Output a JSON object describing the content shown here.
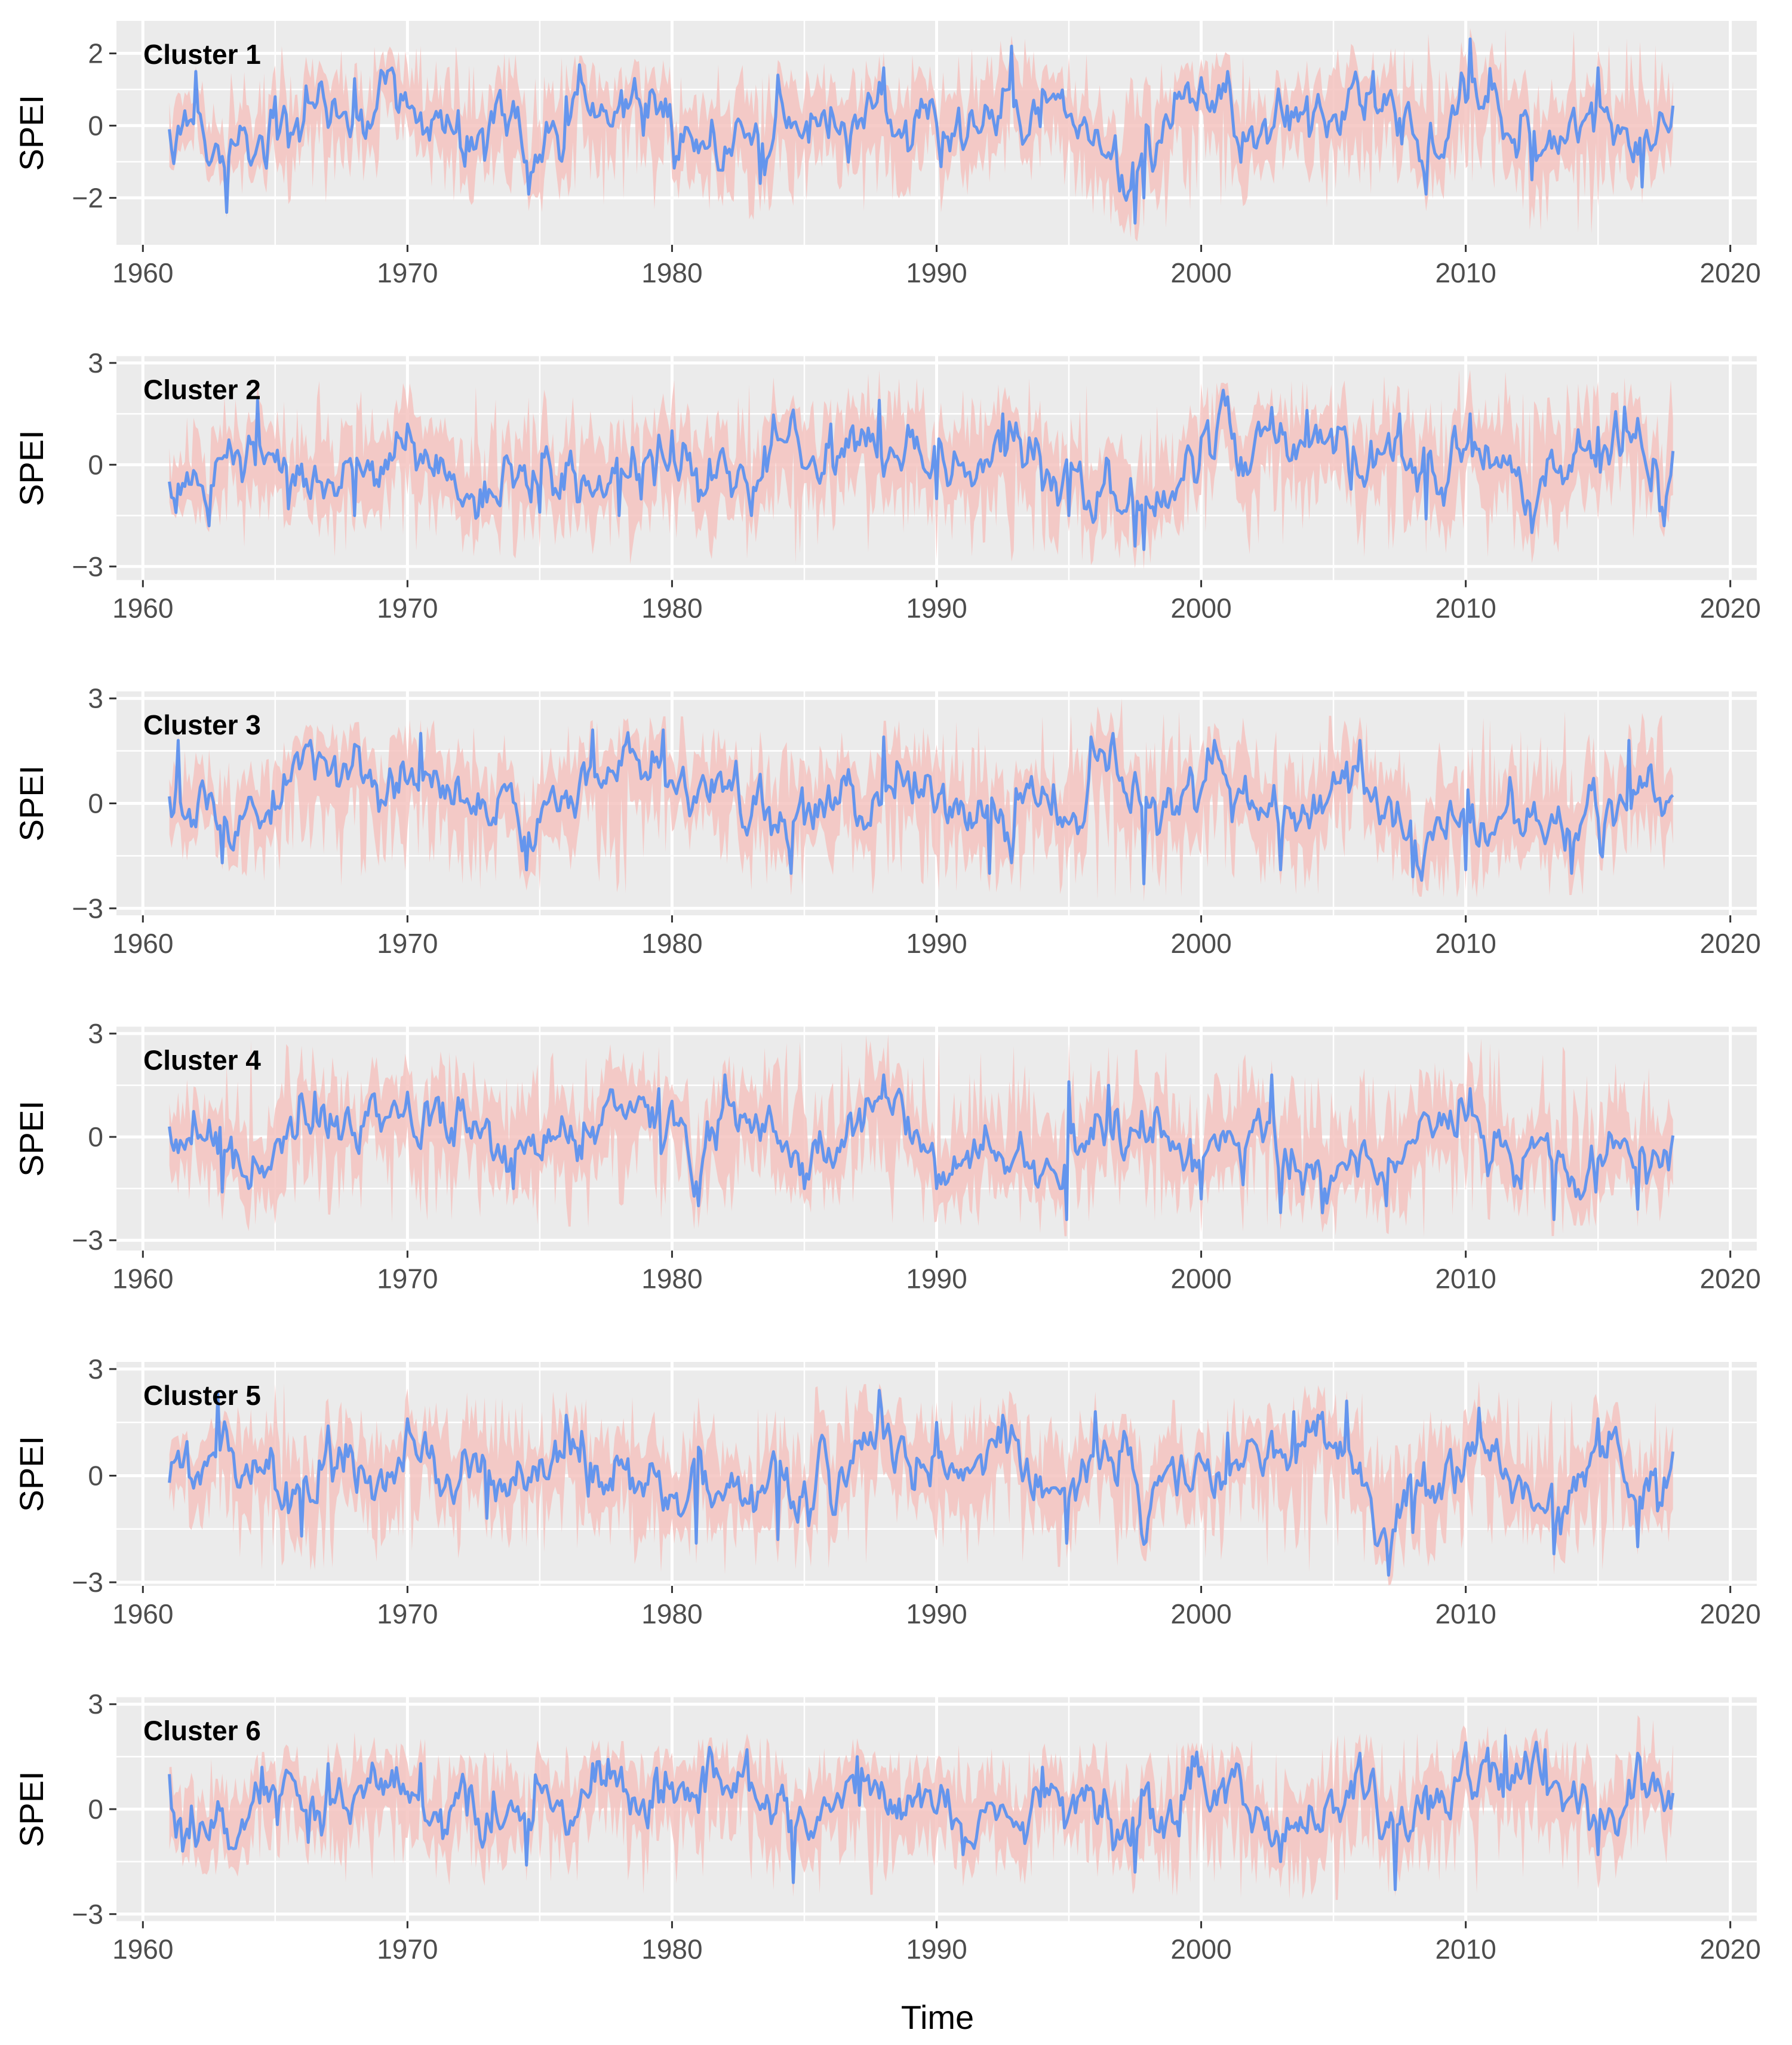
{
  "figure": {
    "xlabel": "Time",
    "ylabel": "SPEI"
  },
  "colors": {
    "panel_background": "#ebebeb",
    "grid_major": "#ffffff",
    "mean_line": "#6495ed",
    "range_band": "#f4c3bf",
    "tick_text": "#4d4d4d"
  },
  "chart_data": [
    {
      "type": "line",
      "title": "Cluster 1",
      "label": "Cluster 1",
      "xlabel": "Time",
      "ylabel": "SPEI",
      "xlim": [
        1959,
        2021
      ],
      "ylim": [
        -3.3,
        2.9
      ],
      "xticks": [
        1960,
        1970,
        1980,
        1990,
        2000,
        2010,
        2020
      ],
      "yticks": [
        -2,
        0,
        2
      ],
      "ytick_labels": [
        "−2",
        "0",
        "2"
      ],
      "grid": true,
      "series_time_range": [
        1961.0,
        2017.9
      ],
      "series": [
        {
          "name": "",
          "role": "mean",
          "color": "#6495ed",
          "x": [
            1961.0,
            1962.0,
            1963.2,
            1965.0,
            1966.2,
            1968.0,
            1969.5,
            1972.0,
            1974.6,
            1976.0,
            1979.0,
            1983.3,
            1984.0,
            1986.0,
            1988.0,
            1990.5,
            1992.8,
            1994.0,
            1997.5,
            1997.8,
            1999.0,
            2001.0,
            2004.0,
            2006.5,
            2008.5,
            2010.2,
            2012.5,
            2015.0,
            2016.7,
            2017.9
          ],
          "values": [
            -0.1,
            1.5,
            -2.4,
            0.8,
            1.1,
            1.3,
            1.4,
            -0.6,
            -1.9,
            0.8,
            0.6,
            -1.6,
            1.4,
            0.5,
            1.6,
            -0.7,
            2.2,
            1.0,
            -2.7,
            -2.0,
            0.9,
            1.5,
            0.8,
            1.5,
            -1.9,
            2.4,
            -1.5,
            1.6,
            -1.7,
            -0.5
          ]
        },
        {
          "name": "",
          "role": "range",
          "color": "#f4c3bf",
          "x": [
            1961.0,
            1965.0,
            1970.0,
            1975.0,
            1980.0,
            1985.0,
            1990.0,
            1992.8,
            1997.8,
            2000.0,
            2005.0,
            2010.2,
            2015.0,
            2017.9
          ],
          "upper": [
            0.8,
            2.2,
            2.3,
            2.0,
            1.8,
            2.2,
            1.9,
            2.5,
            1.6,
            2.0,
            2.2,
            2.7,
            2.6,
            2.1
          ],
          "lower": [
            -1.2,
            -2.2,
            -2.0,
            -2.4,
            -2.3,
            -2.8,
            -2.5,
            -1.2,
            -3.3,
            -2.2,
            -2.3,
            -2.8,
            -3.0,
            -1.5
          ]
        }
      ]
    },
    {
      "type": "line",
      "title": "Cluster 2",
      "label": "Cluster 2",
      "xlabel": "Time",
      "ylabel": "SPEI",
      "xlim": [
        1959,
        2021
      ],
      "ylim": [
        -3.4,
        3.2
      ],
      "xticks": [
        1960,
        1970,
        1980,
        1990,
        2000,
        2010,
        2020
      ],
      "yticks": [
        -3,
        0,
        3
      ],
      "ytick_labels": [
        "−3",
        "0",
        "3"
      ],
      "grid": true,
      "series_time_range": [
        1961.0,
        2017.9
      ],
      "series": [
        {
          "name": "",
          "role": "mean",
          "color": "#6495ed",
          "x": [
            1961.0,
            1962.5,
            1964.3,
            1965.5,
            1968.0,
            1970.0,
            1973.0,
            1975.0,
            1978.0,
            1980.0,
            1983.0,
            1986.0,
            1987.8,
            1990.0,
            1992.5,
            1995.0,
            1997.5,
            1997.8,
            2000.0,
            2001.0,
            2004.0,
            2007.5,
            2008.5,
            2010.2,
            2012.5,
            2015.0,
            2016.0,
            2017.5,
            2017.9
          ],
          "values": [
            -0.5,
            -1.8,
            1.9,
            -1.3,
            -1.5,
            1.2,
            -1.1,
            -1.4,
            -1.5,
            1.0,
            -1.5,
            1.2,
            1.9,
            -1.0,
            1.5,
            -1.5,
            -2.4,
            -2.5,
            0.8,
            2.0,
            1.6,
            1.5,
            -1.6,
            1.5,
            -2.0,
            1.1,
            1.7,
            -1.8,
            0.5
          ]
        },
        {
          "name": "",
          "role": "range",
          "color": "#f4c3bf",
          "x": [
            1961.0,
            1965.0,
            1970.0,
            1975.0,
            1980.0,
            1985.0,
            1988.0,
            1990.0,
            1995.0,
            1997.8,
            2000.0,
            2005.0,
            2010.0,
            2015.0,
            2017.9
          ],
          "upper": [
            1.5,
            2.5,
            2.4,
            2.2,
            2.5,
            2.6,
            2.8,
            2.4,
            2.6,
            1.5,
            2.4,
            2.5,
            2.8,
            2.6,
            2.5
          ],
          "lower": [
            -1.5,
            -2.8,
            -2.6,
            -2.8,
            -3.0,
            -2.9,
            -2.5,
            -2.8,
            -2.9,
            -3.1,
            -2.6,
            -2.7,
            -2.8,
            -3.0,
            -2.0
          ]
        }
      ]
    },
    {
      "type": "line",
      "title": "Cluster 3",
      "label": "Cluster 3",
      "xlabel": "Time",
      "ylabel": "SPEI",
      "xlim": [
        1959,
        2021
      ],
      "ylim": [
        -3.2,
        3.2
      ],
      "xticks": [
        1960,
        1970,
        1980,
        1990,
        2000,
        2010,
        2020
      ],
      "yticks": [
        -3,
        0,
        3
      ],
      "ytick_labels": [
        "−3",
        "0",
        "3"
      ],
      "grid": true,
      "series_time_range": [
        1961.0,
        2017.9
      ],
      "series": [
        {
          "name": "",
          "role": "mean",
          "color": "#6495ed",
          "x": [
            1961.0,
            1961.3,
            1963.0,
            1966.3,
            1970.5,
            1974.5,
            1977.0,
            1979.7,
            1984.5,
            1988.0,
            1992.0,
            1996.7,
            1997.8,
            2000.5,
            2003.0,
            2006.0,
            2008.0,
            2010.0,
            2014.0,
            2016.2,
            2017.9
          ],
          "values": [
            0.2,
            1.8,
            -1.7,
            1.8,
            2.0,
            -1.9,
            2.1,
            2.1,
            -2.0,
            1.9,
            -2.0,
            2.0,
            -2.3,
            1.8,
            -1.9,
            1.8,
            -2.1,
            -1.9,
            -2.0,
            1.8,
            0.2
          ]
        },
        {
          "name": "",
          "role": "range",
          "color": "#f4c3bf",
          "x": [
            1961.0,
            1965.0,
            1970.0,
            1975.0,
            1980.0,
            1985.0,
            1990.0,
            1995.0,
            1997.0,
            2000.0,
            2005.0,
            2010.0,
            2015.0,
            2017.9
          ],
          "upper": [
            1.5,
            2.2,
            2.4,
            2.3,
            2.5,
            2.3,
            2.4,
            2.5,
            3.0,
            2.6,
            2.5,
            2.4,
            2.7,
            2.5
          ],
          "lower": [
            -1.5,
            -2.3,
            -2.4,
            -2.5,
            -2.6,
            -2.7,
            -2.5,
            -2.6,
            -2.9,
            -2.6,
            -2.6,
            -2.7,
            -2.6,
            -1.8
          ]
        }
      ]
    },
    {
      "type": "line",
      "title": "Cluster 4",
      "label": "Cluster 4",
      "xlabel": "Time",
      "ylabel": "SPEI",
      "xlim": [
        1959,
        2021
      ],
      "ylim": [
        -3.3,
        3.2
      ],
      "xticks": [
        1960,
        1970,
        1980,
        1990,
        2000,
        2010,
        2020
      ],
      "yticks": [
        -3,
        0,
        3
      ],
      "ytick_labels": [
        "−3",
        "0",
        "3"
      ],
      "grid": true,
      "series_time_range": [
        1961.0,
        2017.9
      ],
      "series": [
        {
          "name": "",
          "role": "mean",
          "color": "#6495ed",
          "x": [
            1961.0,
            1963.0,
            1966.5,
            1970.0,
            1974.0,
            1979.5,
            1981.0,
            1982.0,
            1985.0,
            1988.0,
            1990.0,
            1994.9,
            1995.0,
            1996.5,
            2000.0,
            2002.7,
            2003.0,
            2007.0,
            2010.2,
            2013.3,
            2016.5,
            2017.9
          ],
          "values": [
            0.3,
            -1.6,
            1.3,
            1.3,
            -1.5,
            1.4,
            -2.0,
            1.8,
            -1.5,
            1.8,
            -1.5,
            -2.4,
            1.6,
            1.5,
            -1.8,
            1.8,
            -2.2,
            -2.0,
            1.4,
            -2.4,
            -2.1,
            -0.3
          ]
        },
        {
          "name": "",
          "role": "range",
          "color": "#f4c3bf",
          "x": [
            1961.0,
            1964.0,
            1968.0,
            1972.0,
            1976.0,
            1980.0,
            1984.0,
            1988.0,
            1992.0,
            1995.0,
            2000.0,
            2003.0,
            2007.0,
            2010.0,
            2014.0,
            2017.9
          ],
          "upper": [
            1.5,
            2.8,
            2.5,
            2.6,
            2.8,
            2.6,
            2.7,
            3.0,
            2.6,
            2.7,
            2.4,
            2.8,
            2.5,
            2.9,
            2.6,
            1.8
          ],
          "lower": [
            -1.5,
            -2.9,
            -2.5,
            -2.4,
            -2.6,
            -2.7,
            -2.6,
            -2.5,
            -2.6,
            -2.9,
            -2.8,
            -2.7,
            -3.0,
            -2.8,
            -2.9,
            -2.6
          ]
        }
      ]
    },
    {
      "type": "line",
      "title": "Cluster 5",
      "label": "Cluster 5",
      "xlabel": "Time",
      "ylabel": "SPEI",
      "xlim": [
        1959,
        2021
      ],
      "ylim": [
        -3.1,
        3.2
      ],
      "xticks": [
        1960,
        1970,
        1980,
        1990,
        2000,
        2010,
        2020
      ],
      "yticks": [
        -3,
        0,
        3
      ],
      "ytick_labels": [
        "−3",
        "0",
        "3"
      ],
      "grid": true,
      "series_time_range": [
        1961.0,
        2017.9
      ],
      "series": [
        {
          "name": "",
          "role": "mean",
          "color": "#6495ed",
          "x": [
            1961.0,
            1962.8,
            1966.0,
            1967.0,
            1970.0,
            1973.0,
            1976.0,
            1980.9,
            1984.0,
            1987.8,
            1990.0,
            1992.5,
            1994.9,
            1996.0,
            1998.0,
            2001.0,
            2003.5,
            2005.5,
            2007.1,
            2008.0,
            2010.5,
            2013.3,
            2015.0,
            2016.5,
            2017.9
          ],
          "values": [
            -0.2,
            2.3,
            -1.7,
            1.4,
            1.6,
            -1.2,
            1.7,
            -1.9,
            -1.8,
            2.4,
            1.5,
            1.7,
            -1.9,
            1.8,
            -1.2,
            1.2,
            1.8,
            2.1,
            -2.8,
            -1.6,
            1.9,
            -2.2,
            1.6,
            -2.0,
            0.8
          ]
        },
        {
          "name": "",
          "role": "range",
          "color": "#f4c3bf",
          "x": [
            1961.0,
            1965.0,
            1969.0,
            1973.0,
            1977.0,
            1981.0,
            1985.0,
            1988.0,
            1992.0,
            1996.0,
            2000.0,
            2004.0,
            2007.0,
            2010.0,
            2014.0,
            2017.9
          ],
          "upper": [
            1.0,
            2.6,
            2.5,
            2.3,
            2.4,
            2.2,
            2.5,
            2.6,
            2.4,
            2.5,
            2.0,
            2.6,
            2.2,
            2.7,
            2.4,
            2.0
          ],
          "lower": [
            -1.5,
            -2.8,
            -2.4,
            -2.3,
            -2.6,
            -2.8,
            -2.7,
            -2.4,
            -2.5,
            -2.6,
            -2.3,
            -2.7,
            -3.1,
            -2.7,
            -3.0,
            -1.8
          ]
        }
      ]
    },
    {
      "type": "line",
      "title": "Cluster 6",
      "label": "Cluster 6",
      "xlabel": "Time",
      "ylabel": "SPEI",
      "xlim": [
        1959,
        2021
      ],
      "ylim": [
        -3.2,
        3.2
      ],
      "xticks": [
        1960,
        1970,
        1980,
        1990,
        2000,
        2010,
        2020
      ],
      "yticks": [
        -3,
        0,
        3
      ],
      "ytick_labels": [
        "−3",
        "0",
        "3"
      ],
      "grid": true,
      "series_time_range": [
        1961.0,
        2017.9
      ],
      "series": [
        {
          "name": "",
          "role": "mean",
          "color": "#6495ed",
          "x": [
            1961.0,
            1961.5,
            1964.5,
            1967.0,
            1970.5,
            1974.5,
            1977.0,
            1982.8,
            1984.6,
            1987.0,
            1991.0,
            1994.0,
            1997.5,
            2000.0,
            2003.0,
            2006.0,
            2007.3,
            2010.0,
            2011.5,
            2013.0,
            2015.0,
            2016.5,
            2017.9
          ],
          "values": [
            1.0,
            -1.2,
            1.2,
            1.3,
            1.3,
            -1.6,
            1.3,
            1.7,
            -2.1,
            1.5,
            -1.3,
            1.2,
            -1.8,
            1.2,
            -1.5,
            1.6,
            -2.3,
            1.9,
            2.1,
            1.7,
            -1.3,
            1.6,
            1.2
          ]
        },
        {
          "name": "",
          "role": "range",
          "color": "#f4c3bf",
          "x": [
            1961.0,
            1965.0,
            1968.0,
            1972.0,
            1976.0,
            1980.0,
            1983.0,
            1986.0,
            1990.0,
            1995.0,
            2000.0,
            2005.0,
            2010.0,
            2014.0,
            2016.8,
            2017.9
          ],
          "upper": [
            1.2,
            1.8,
            2.2,
            1.9,
            2.0,
            1.9,
            2.2,
            2.1,
            1.8,
            2.0,
            1.9,
            2.1,
            2.4,
            2.3,
            2.8,
            1.8
          ],
          "lower": [
            -1.8,
            -2.0,
            -2.1,
            -2.3,
            -2.2,
            -2.5,
            -2.4,
            -2.6,
            -2.2,
            -2.4,
            -2.5,
            -2.6,
            -2.4,
            -2.3,
            -2.2,
            -1.5
          ]
        }
      ]
    }
  ]
}
